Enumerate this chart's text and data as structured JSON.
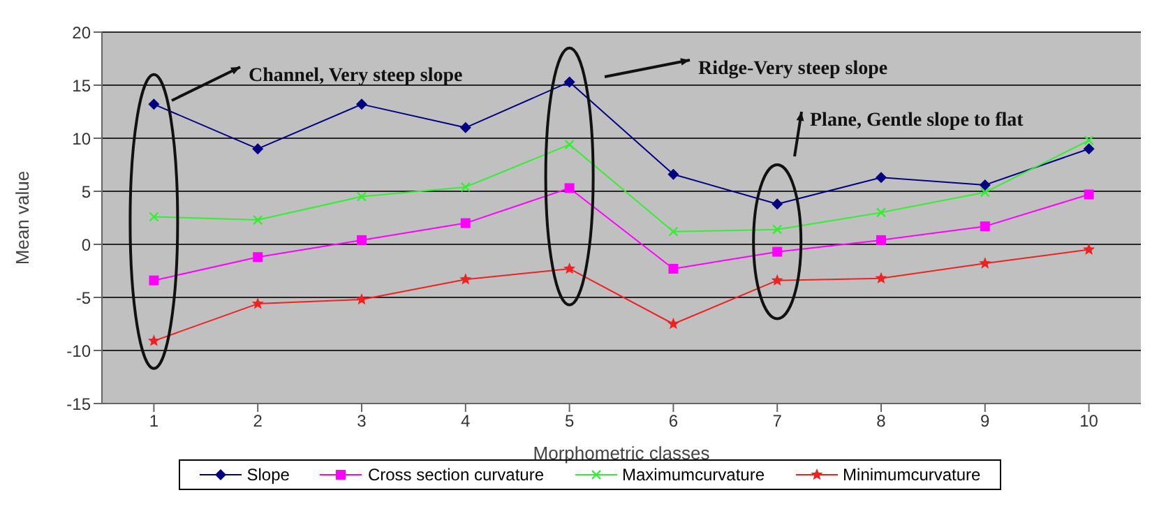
{
  "chart_data": {
    "type": "line",
    "xlabel": "Morphometric classes",
    "ylabel": "Mean value",
    "categories": [
      "1",
      "2",
      "3",
      "4",
      "5",
      "6",
      "7",
      "8",
      "9",
      "10"
    ],
    "series": [
      {
        "name": "Slope",
        "color": "#000080",
        "marker": "diamond",
        "values": [
          13.2,
          9,
          13.2,
          11,
          15.3,
          6.6,
          3.8,
          6.3,
          5.6,
          9
        ]
      },
      {
        "name": "Cross section curvature",
        "color": "#ff00ff",
        "marker": "square",
        "values": [
          -3.4,
          -1.2,
          0.4,
          2,
          5.3,
          -2.3,
          -0.7,
          0.4,
          1.7,
          4.7
        ]
      },
      {
        "name": "Maximumcurvature",
        "color": "#33ee33",
        "marker": "cross",
        "values": [
          2.6,
          2.3,
          4.5,
          5.4,
          9.4,
          1.2,
          1.4,
          3,
          4.9,
          9.8
        ]
      },
      {
        "name": "Minimumcurvature",
        "color": "#ee2222",
        "marker": "star",
        "values": [
          -9.1,
          -5.6,
          -5.2,
          -3.3,
          -2.3,
          -7.5,
          -3.4,
          -3.2,
          -1.8,
          -0.5
        ]
      }
    ],
    "ylim": [
      -15,
      20
    ],
    "yticks": [
      -15,
      -10,
      -5,
      0,
      5,
      10,
      15,
      20
    ],
    "grid": "y",
    "legend": "bottom",
    "line_style": "solid",
    "annotations": [
      "Channel, Very steep slope",
      "Ridge-Very steep slope",
      "Plane, Gentle slope to flat"
    ]
  }
}
